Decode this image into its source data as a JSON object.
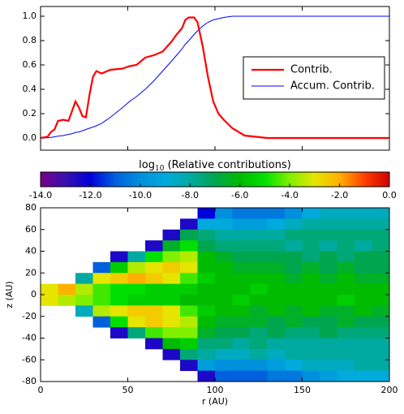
{
  "chart_data": [
    {
      "type": "line",
      "x": [
        0,
        4,
        6,
        8,
        10,
        13,
        16,
        18,
        20,
        22,
        24,
        26,
        28,
        30,
        32,
        35,
        40,
        47,
        51,
        55,
        60,
        65,
        70,
        75,
        78,
        81,
        83,
        85,
        88,
        90,
        93,
        96,
        99,
        102,
        105,
        110,
        117,
        130,
        200
      ],
      "series": [
        {
          "name": "Contrib.",
          "color": "#ff0000",
          "width": 2.2,
          "values": [
            0,
            0.01,
            0.05,
            0.07,
            0.14,
            0.15,
            0.14,
            0.22,
            0.3,
            0.25,
            0.18,
            0.17,
            0.35,
            0.5,
            0.55,
            0.53,
            0.56,
            0.57,
            0.59,
            0.6,
            0.66,
            0.68,
            0.71,
            0.79,
            0.85,
            0.9,
            0.97,
            0.99,
            0.99,
            0.95,
            0.75,
            0.5,
            0.3,
            0.2,
            0.15,
            0.08,
            0.02,
            0,
            0
          ]
        },
        {
          "name": "Accum. Contrib.",
          "color": "#0000ff",
          "width": 1,
          "values": [
            0,
            0.002,
            0.005,
            0.01,
            0.015,
            0.02,
            0.03,
            0.035,
            0.045,
            0.05,
            0.06,
            0.07,
            0.08,
            0.09,
            0.1,
            0.12,
            0.17,
            0.25,
            0.3,
            0.34,
            0.4,
            0.47,
            0.55,
            0.63,
            0.68,
            0.73,
            0.77,
            0.8,
            0.85,
            0.88,
            0.92,
            0.95,
            0.97,
            0.98,
            0.99,
            1,
            1,
            1,
            1
          ]
        }
      ],
      "xlim": [
        0,
        200
      ],
      "ylim": [
        -0.1,
        1.08
      ],
      "yticks": [
        {
          "value": 0,
          "label": "0.0"
        },
        {
          "value": 0.2,
          "label": "0.2"
        },
        {
          "value": 0.4,
          "label": "0.4"
        },
        {
          "value": 0.6,
          "label": "0.6"
        },
        {
          "value": 0.8,
          "label": "0.8"
        },
        {
          "value": 1,
          "label": "1.0"
        }
      ],
      "legend": "center right"
    },
    {
      "type": "heatmap",
      "colorbar": {
        "label": {
          "prefix": "log",
          "subscript": "10",
          "text": " (Relative contributions)"
        },
        "clim": [
          -14,
          0
        ],
        "ticks": [
          {
            "value": -14,
            "label": "-14.0"
          },
          {
            "value": -12,
            "label": "-12.0"
          },
          {
            "value": -10,
            "label": "-10.0"
          },
          {
            "value": -8,
            "label": "-8.0"
          },
          {
            "value": -6,
            "label": "-6.0"
          },
          {
            "value": -4,
            "label": "-4.0"
          },
          {
            "value": -2,
            "label": "-2.0"
          },
          {
            "value": 0,
            "label": "0.0"
          }
        ],
        "colors": [
          "#780085",
          "#3a10b0",
          "#0000dd",
          "#0060dd",
          "#0090dd",
          "#00aadd",
          "#00aaa0",
          "#00a550",
          "#00bb00",
          "#00e000",
          "#80f000",
          "#e5e500",
          "#ffb000",
          "#ff4000",
          "#d00000"
        ]
      },
      "x_label": "r (AU)",
      "y_label": "z (AU)",
      "xlim": [
        0,
        200
      ],
      "ylim": [
        -80,
        80
      ],
      "xticks": [
        0,
        50,
        100,
        150,
        200
      ],
      "yticks": [
        80,
        60,
        40,
        20,
        0,
        -20,
        -40,
        -60,
        -80
      ],
      "r": [
        5,
        15,
        25,
        35,
        45,
        55,
        65,
        75,
        85,
        95,
        105,
        115,
        125,
        135,
        145,
        155,
        165,
        175,
        185,
        195
      ],
      "z": [
        75,
        65,
        55,
        45,
        35,
        25,
        15,
        5,
        -5,
        -15,
        -25,
        -35,
        -45,
        -55,
        -65,
        -75
      ],
      "values": [
        [
          null,
          null,
          null,
          null,
          null,
          null,
          null,
          null,
          null,
          -12,
          -10,
          -10.5,
          -10.5,
          -10.5,
          -10,
          -9,
          -8.5,
          -8.5,
          -8.5,
          -8.5
        ],
        [
          null,
          null,
          null,
          null,
          null,
          null,
          null,
          null,
          -12.5,
          -9,
          -9,
          -9.5,
          -9.5,
          -9,
          -8.5,
          -8,
          -8,
          -8,
          -8,
          -8
        ],
        [
          null,
          null,
          null,
          null,
          null,
          null,
          null,
          -12.5,
          -7,
          -7.5,
          -8,
          -8,
          -8,
          -8,
          -7.5,
          -7.5,
          -7.5,
          -7.5,
          -7.5,
          -7.5
        ],
        [
          null,
          null,
          null,
          null,
          null,
          null,
          -12.5,
          -6.5,
          -5,
          -7,
          -7.5,
          -7.5,
          -7.5,
          -7.5,
          -8,
          -7.5,
          -8,
          -7.5,
          -8,
          -7.5
        ],
        [
          null,
          null,
          null,
          null,
          -12.5,
          -8,
          -5,
          -4,
          -3.5,
          -6,
          -6.5,
          -7,
          -7,
          -7,
          -7,
          -7.5,
          -7,
          -7.5,
          -7,
          -7
        ],
        [
          null,
          null,
          null,
          -11,
          -5.5,
          -3.5,
          -3,
          -2.5,
          -3,
          -6,
          -6,
          -6.5,
          -6.5,
          -6.5,
          -7,
          -6.5,
          -7,
          -6.5,
          -7,
          -7
        ],
        [
          null,
          null,
          -8,
          -3,
          -2.5,
          -2,
          -2.5,
          -3,
          -4.5,
          -5.5,
          -6,
          -6,
          -6,
          -6,
          -6.5,
          -6,
          -6.5,
          -6,
          -6.5,
          -6.5
        ],
        [
          -3,
          -2,
          -3.5,
          -4.5,
          -5,
          -5,
          -5.5,
          -5.5,
          -5.5,
          -6,
          -6,
          -6,
          -5.5,
          -6,
          -6,
          -6,
          -6,
          -6,
          -6,
          -6
        ],
        [
          -3,
          -3.5,
          -4,
          -4.5,
          -5,
          -5.5,
          -5.5,
          -5.5,
          -6,
          -6,
          -6,
          -5.5,
          -6,
          -6,
          -6,
          -6,
          -6,
          -5.5,
          -6,
          -6
        ],
        [
          null,
          null,
          -8.5,
          -3.5,
          -3,
          -2.5,
          -2.5,
          -3,
          -4.5,
          -5.5,
          -6,
          -6,
          -6.5,
          -6,
          -6.5,
          -6,
          -6.5,
          -6.5,
          -6,
          -6.5
        ],
        [
          null,
          null,
          null,
          -11,
          -5,
          -3,
          -2.5,
          -3,
          -3.5,
          -6,
          -6.5,
          -6.5,
          -6.5,
          -7,
          -6.5,
          -7,
          -7,
          -6.5,
          -7,
          -7
        ],
        [
          null,
          null,
          null,
          null,
          -12.5,
          -7.5,
          -4.5,
          -4,
          -4,
          -6.5,
          -7,
          -7,
          -7.5,
          -7,
          -7.5,
          -7.5,
          -7,
          -7.5,
          -7.5,
          -7.5
        ],
        [
          null,
          null,
          null,
          null,
          null,
          null,
          -12.5,
          -6,
          -5.5,
          -7.5,
          -7.5,
          -8,
          -7.5,
          -8,
          -8,
          -8,
          -8,
          -8,
          -8,
          -8
        ],
        [
          null,
          null,
          null,
          null,
          null,
          null,
          null,
          -12.5,
          -7.5,
          -8,
          -8.5,
          -8.5,
          -8,
          -8.5,
          -8,
          -8,
          -8,
          -8,
          -8,
          -8
        ],
        [
          null,
          null,
          null,
          null,
          null,
          null,
          null,
          null,
          -12.5,
          -9.5,
          -10,
          -10,
          -10,
          -9.5,
          -9,
          -8.5,
          -8.5,
          -8.5,
          -8,
          -8
        ],
        [
          null,
          null,
          null,
          null,
          null,
          null,
          null,
          null,
          null,
          -12.5,
          -11,
          -11,
          -11,
          -10.5,
          -10.5,
          -10,
          -9.5,
          -9,
          -9,
          -9
        ]
      ]
    }
  ]
}
